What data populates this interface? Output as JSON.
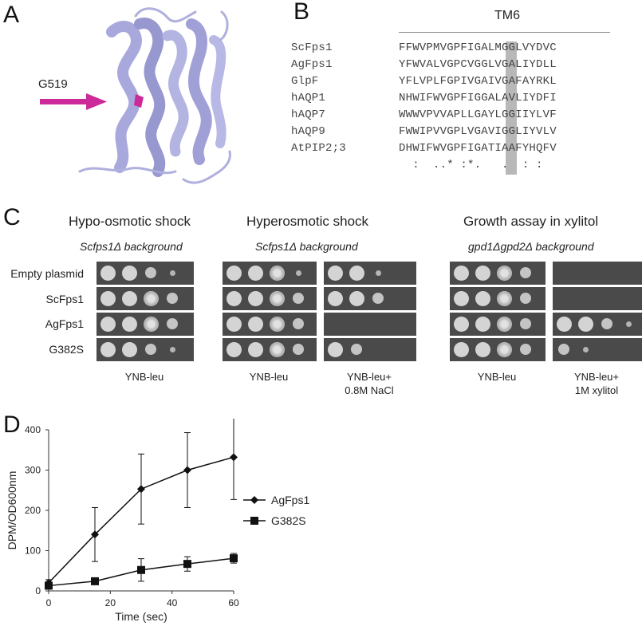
{
  "panels": {
    "a": "A",
    "b": "B",
    "c": "C",
    "d": "D"
  },
  "panel_a": {
    "arrow_label": "G519",
    "arrow_color": "#cc2a98",
    "protein_color": "#a8a8dc"
  },
  "panel_b": {
    "title": "TM6",
    "rows": [
      {
        "name": "ScFps1",
        "seq": "FFWVPMVGPFIGALMGGLVYDVC"
      },
      {
        "name": "AgFps1",
        "seq": "YFWVALVGPCVGGLVGALIYDLL"
      },
      {
        "name": "GlpF",
        "seq": "YFLVPLFGPIVGAIVGAFAYRKL"
      },
      {
        "name": "hAQP1",
        "seq": "NHWIFWVGPFIGGALAVLIYDFI"
      },
      {
        "name": "hAQP7",
        "seq": "WWWVPVVAPLLGAYLGGIIYLVF"
      },
      {
        "name": "hAQP9",
        "seq": "FWWIPVVGPLVGAVIGGLIYVLV"
      },
      {
        "name": "AtPIP2;3",
        "seq": "DHWIFWVGPFIGATIAAFYHQFV"
      }
    ],
    "consensus": "  :  ..* :*.   .  : :  ",
    "highlight_color": "#b8b8b8"
  },
  "panel_c": {
    "groups": [
      {
        "title": "Hypo-osmotic shock",
        "background_label": "Scfps1Δ background"
      },
      {
        "title": "Hyperosmotic shock",
        "background_label": "Scfps1Δ background"
      },
      {
        "title": "Growth assay in xylitol",
        "background_label": "gpd1Δgpd2Δ background"
      }
    ],
    "row_labels": [
      "Empty plasmid",
      "ScFps1",
      "AgFps1",
      "G382S"
    ],
    "media": [
      {
        "line1": "YNB-leu",
        "line2": ""
      },
      {
        "line1": "YNB-leu",
        "line2": ""
      },
      {
        "line1": "YNB-leu+",
        "line2": "0.8M NaCl"
      },
      {
        "line1": "YNB-leu",
        "line2": ""
      },
      {
        "line1": "YNB-leu+",
        "line2": "1M xylitol"
      }
    ],
    "growth_levels": [
      [
        [
          3,
          3,
          2,
          1
        ],
        [
          3,
          3,
          3,
          2
        ],
        [
          3,
          3,
          3,
          2
        ],
        [
          3,
          3,
          2,
          1
        ]
      ],
      [
        [
          3,
          3,
          3,
          1
        ],
        [
          3,
          3,
          3,
          2
        ],
        [
          3,
          3,
          3,
          2
        ],
        [
          3,
          3,
          3,
          2
        ]
      ],
      [
        [
          3,
          3,
          1,
          0
        ],
        [
          3,
          3,
          2,
          0
        ],
        [
          0,
          0,
          0,
          0
        ],
        [
          3,
          2,
          0,
          0
        ]
      ],
      [
        [
          3,
          3,
          3,
          2
        ],
        [
          3,
          3,
          3,
          2
        ],
        [
          3,
          3,
          3,
          2
        ],
        [
          3,
          3,
          3,
          2
        ]
      ],
      [
        [
          0,
          0,
          0,
          0
        ],
        [
          0,
          0,
          0,
          0
        ],
        [
          3,
          3,
          2,
          1
        ],
        [
          2,
          1,
          0,
          0
        ]
      ]
    ]
  },
  "chart_data": {
    "type": "line",
    "xlabel": "Time (sec)",
    "ylabel": "DPM/OD600nm",
    "xlim": [
      0,
      60
    ],
    "ylim": [
      0,
      400
    ],
    "xticks": [
      "0",
      "20",
      "40",
      "60"
    ],
    "yticks": [
      "0",
      "100",
      "200",
      "300",
      "400"
    ],
    "legend_position": "right",
    "series": [
      {
        "name": "AgFps1",
        "marker": "diamond",
        "x": [
          0,
          15,
          30,
          45,
          60
        ],
        "y": [
          20,
          140,
          253,
          300,
          332
        ],
        "err": [
          8,
          67,
          87,
          93,
          105
        ]
      },
      {
        "name": "G382S",
        "marker": "square",
        "x": [
          0,
          15,
          30,
          45,
          60
        ],
        "y": [
          13,
          24,
          52,
          67,
          81
        ],
        "err": [
          4,
          4,
          28,
          18,
          12
        ]
      }
    ]
  }
}
